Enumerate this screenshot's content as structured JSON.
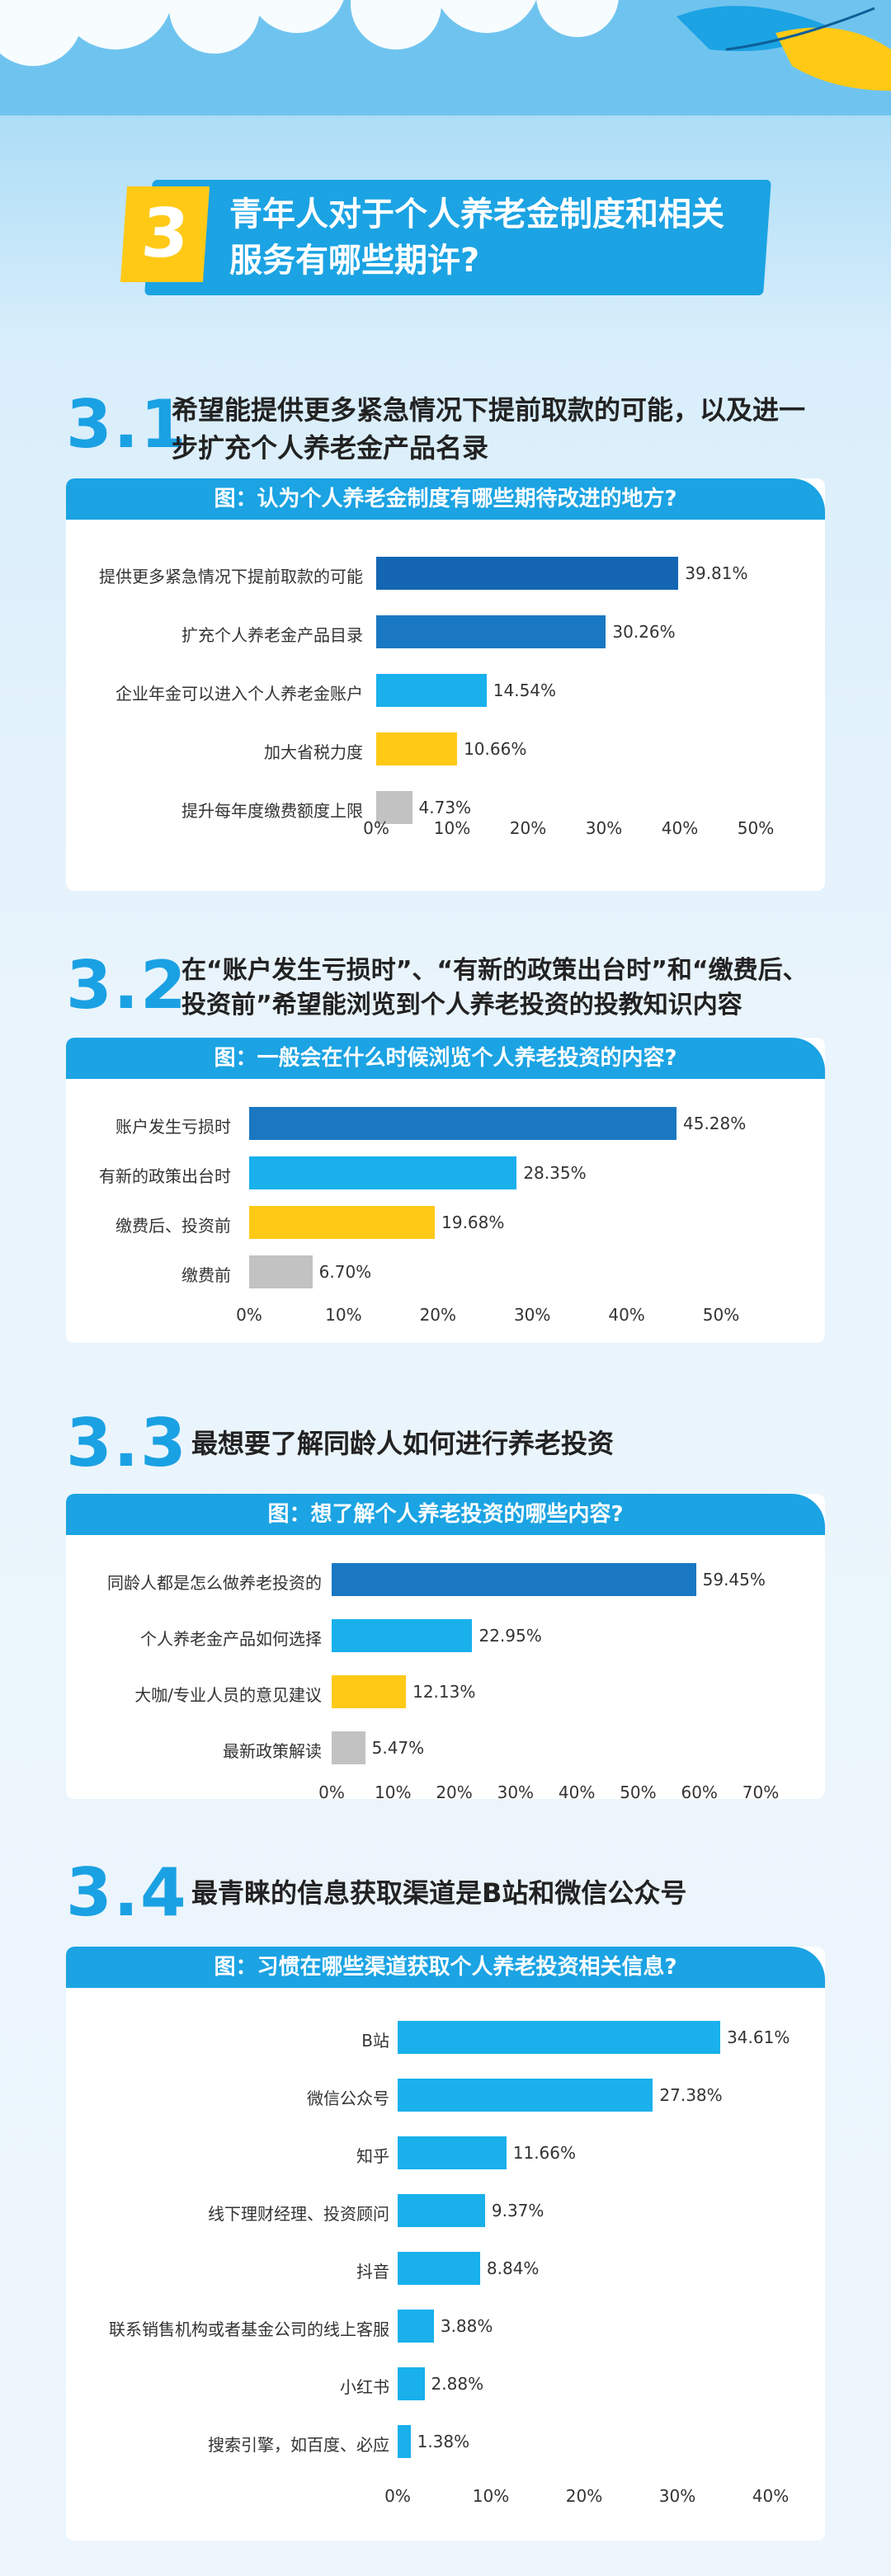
{
  "colors": {
    "accent": "#1ba3e3",
    "dark_blue": "#1466b3",
    "mid_blue": "#1a78c2",
    "light_blue": "#19b0ec",
    "yellow": "#ffc916",
    "gray": "#c2c2c2"
  },
  "header": {
    "number": "3",
    "title": "青年人对于个人养老金制度和相关服务有哪些期许?"
  },
  "sections": [
    {
      "num": "3.1",
      "title": "希望能提供更多紧急情况下提前取款的可能，以及进一步扩充个人养老金产品名录",
      "chart_title": "图：认为个人养老金制度有哪些期待改进的地方?"
    },
    {
      "num": "3.2",
      "title": "在“账户发生亏损时”、“有新的政策出台时”和“缴费后、投资前”希望能浏览到个人养老投资的投教知识内容",
      "chart_title": "图：一般会在什么时候浏览个人养老投资的内容?"
    },
    {
      "num": "3.3",
      "title": "最想要了解同龄人如何进行养老投资",
      "chart_title": "图：想了解个人养老投资的哪些内容?"
    },
    {
      "num": "3.4",
      "title": "最青睐的信息获取渠道是B站和微信公众号",
      "chart_title": "图：习惯在哪些渠道获取个人养老投资相关信息?"
    }
  ],
  "chart_data": [
    {
      "type": "bar",
      "orientation": "horizontal",
      "title": "图：认为个人养老金制度有哪些期待改进的地方?",
      "categories": [
        "提供更多紧急情况下提前取款的可能",
        "扩充个人养老金产品目录",
        "企业年金可以进入个人养老金账户",
        "加大省税力度",
        "提升每年度缴费额度上限"
      ],
      "values": [
        39.81,
        30.26,
        14.54,
        10.66,
        4.73
      ],
      "value_labels": [
        "39.81%",
        "30.26%",
        "14.54%",
        "10.66%",
        "4.73%"
      ],
      "bar_colors": [
        "#1466b3",
        "#1a78c2",
        "#19b0ec",
        "#ffc916",
        "#c2c2c2"
      ],
      "xlim": [
        0,
        50
      ],
      "ticks": [
        "0%",
        "10%",
        "20%",
        "30%",
        "40%",
        "50%"
      ]
    },
    {
      "type": "bar",
      "orientation": "horizontal",
      "title": "图：一般会在什么时候浏览个人养老投资的内容?",
      "categories": [
        "账户发生亏损时",
        "有新的政策出台时",
        "缴费后、投资前",
        "缴费前"
      ],
      "values": [
        45.28,
        28.35,
        19.68,
        6.7
      ],
      "value_labels": [
        "45.28%",
        "28.35%",
        "19.68%",
        "6.70%"
      ],
      "bar_colors": [
        "#1a78c2",
        "#19b0ec",
        "#ffc916",
        "#c2c2c2"
      ],
      "xlim": [
        0,
        50
      ],
      "ticks": [
        "0%",
        "10%",
        "20%",
        "30%",
        "40%",
        "50%"
      ]
    },
    {
      "type": "bar",
      "orientation": "horizontal",
      "title": "图：想了解个人养老投资的哪些内容?",
      "categories": [
        "同龄人都是怎么做养老投资的",
        "个人养老金产品如何选择",
        "大咖/专业人员的意见建议",
        "最新政策解读"
      ],
      "values": [
        59.45,
        22.95,
        12.13,
        5.47
      ],
      "value_labels": [
        "59.45%",
        "22.95%",
        "12.13%",
        "5.47%"
      ],
      "bar_colors": [
        "#1a78c2",
        "#19b0ec",
        "#ffc916",
        "#c2c2c2"
      ],
      "xlim": [
        0,
        70
      ],
      "ticks": [
        "0%",
        "10%",
        "20%",
        "30%",
        "40%",
        "50%",
        "60%",
        "70%"
      ]
    },
    {
      "type": "bar",
      "orientation": "horizontal",
      "title": "图：习惯在哪些渠道获取个人养老投资相关信息?",
      "categories": [
        "B站",
        "微信公众号",
        "知乎",
        "线下理财经理、投资顾问",
        "抖音",
        "联系销售机构或者基金公司的线上客服",
        "小红书",
        "搜索引擎，如百度、必应"
      ],
      "values": [
        34.61,
        27.38,
        11.66,
        9.37,
        8.84,
        3.88,
        2.88,
        1.38
      ],
      "value_labels": [
        "34.61%",
        "27.38%",
        "11.66%",
        "9.37%",
        "8.84%",
        "3.88%",
        "2.88%",
        "1.38%"
      ],
      "bar_colors": [
        "#19b0ec",
        "#19b0ec",
        "#19b0ec",
        "#19b0ec",
        "#19b0ec",
        "#19b0ec",
        "#19b0ec",
        "#19b0ec"
      ],
      "xlim": [
        0,
        40
      ],
      "ticks": [
        "0%",
        "10%",
        "20%",
        "30%",
        "40%"
      ]
    }
  ]
}
